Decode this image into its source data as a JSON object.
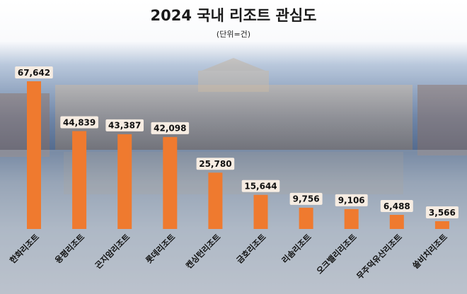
{
  "chart_data": {
    "type": "bar",
    "title": "2024 국내 리조트 관심도",
    "subtitle": "(단위=건)",
    "categories": [
      "한화리조트",
      "용평리조트",
      "곤지암리조트",
      "롯데리조트",
      "켄싱턴리조트",
      "금호리조트",
      "리솜리조트",
      "오크밸리리조트",
      "무주덕유산리조트",
      "쏠비치리조트"
    ],
    "values": [
      67642,
      44839,
      43387,
      42098,
      25780,
      15644,
      9756,
      9106,
      6488,
      3566
    ],
    "value_labels": [
      "67,642",
      "44,839",
      "43,387",
      "42,098",
      "25,780",
      "15,644",
      "9,756",
      "9,106",
      "6,488",
      "3,566"
    ],
    "ylim": [
      0,
      67642
    ],
    "grid": false,
    "legend": "none",
    "colors": {
      "bar": "#ef7a2f",
      "label_box": "#f6ece2",
      "text": "#111111"
    }
  }
}
